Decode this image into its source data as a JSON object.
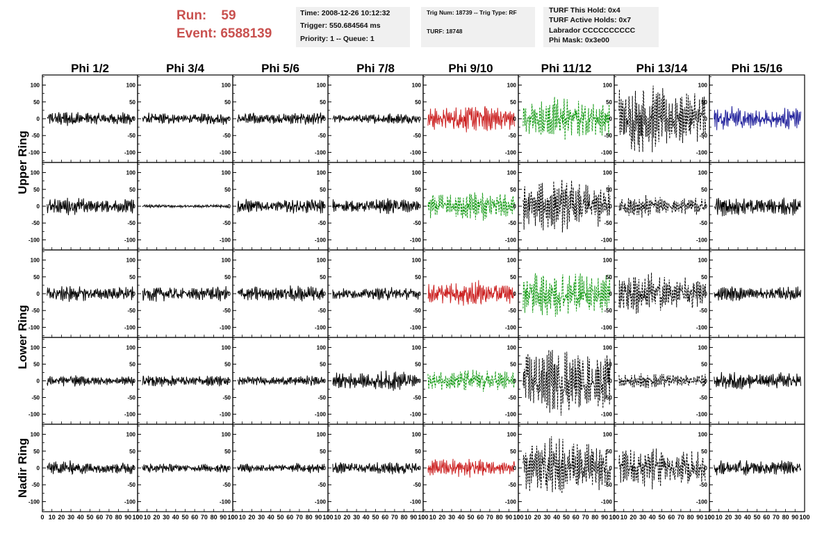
{
  "header": {
    "run_label": "Run:    59",
    "event_label": "Event: 6588139",
    "info_time": {
      "line1": "Time: 2008-12-26 10:12:32",
      "line2": "Trigger: 550.684564 ms",
      "line3": "Priority: 1 -- Queue: 1"
    },
    "info_trig": {
      "line1": "Trig Num: 18739 -- Trig Type: RF",
      "line2": "TURF: 18748"
    },
    "info_turf": {
      "line1": "TURF This Hold: 0x4",
      "line2": "TURF Active Holds: 0x7",
      "line3": "Labrador CCCCCCCCCC",
      "line4": "Phi Mask: 0x3e00"
    }
  },
  "colors": {
    "black": "#000000",
    "red": "#cc2222",
    "green": "#119911",
    "blue": "#22229c",
    "highlight_text": "#c9514f",
    "info_bg": "#f0f0f0"
  },
  "chart_data": {
    "type": "line",
    "columns": [
      "Phi 1/2",
      "Phi 3/4",
      "Phi 5/6",
      "Phi 7/8",
      "Phi 9/10",
      "Phi 11/12",
      "Phi 13/14",
      "Phi 15/16"
    ],
    "row_labels": [
      {
        "label": "Upper Ring",
        "rows": [
          0,
          1
        ]
      },
      {
        "label": "Lower Ring",
        "rows": [
          2,
          3
        ]
      },
      {
        "label": "Nadir Ring",
        "rows": [
          4
        ]
      }
    ],
    "x_tick_labels": [
      "0",
      "10",
      "20",
      "30",
      "40",
      "50",
      "60",
      "70",
      "80",
      "90",
      "100"
    ],
    "y_tick_labels": [
      "100",
      "50",
      "0",
      "-50",
      "-100"
    ],
    "xlim": [
      0,
      100
    ],
    "ylim": [
      -130,
      130
    ],
    "x_ticks": [
      0,
      10,
      20,
      30,
      40,
      50,
      60,
      70,
      80,
      90,
      100
    ],
    "y_ticks": [
      100,
      50,
      0,
      -50,
      -100
    ],
    "panels": [
      [
        {
          "amp": 22,
          "color": "black",
          "dash": false
        },
        {
          "amp": 18,
          "color": "black",
          "dash": false
        },
        {
          "amp": 20,
          "color": "black",
          "dash": false
        },
        {
          "amp": 15,
          "color": "black",
          "dash": false
        },
        {
          "amp": 38,
          "color": "red",
          "dash": false
        },
        {
          "amp": 60,
          "color": "green",
          "dash": true
        },
        {
          "amp": 95,
          "color": "black",
          "dash": true
        },
        {
          "amp": 35,
          "color": "blue",
          "dash": false
        }
      ],
      [
        {
          "amp": 24,
          "color": "black",
          "dash": false
        },
        {
          "amp": 5,
          "color": "black",
          "dash": false
        },
        {
          "amp": 22,
          "color": "black",
          "dash": false
        },
        {
          "amp": 22,
          "color": "black",
          "dash": false
        },
        {
          "amp": 40,
          "color": "green",
          "dash": true
        },
        {
          "amp": 75,
          "color": "black",
          "dash": true
        },
        {
          "amp": 30,
          "color": "black",
          "dash": true
        },
        {
          "amp": 30,
          "color": "black",
          "dash": false
        }
      ],
      [
        {
          "amp": 22,
          "color": "black",
          "dash": false
        },
        {
          "amp": 24,
          "color": "black",
          "dash": false
        },
        {
          "amp": 26,
          "color": "black",
          "dash": false
        },
        {
          "amp": 18,
          "color": "black",
          "dash": false
        },
        {
          "amp": 34,
          "color": "red",
          "dash": false
        },
        {
          "amp": 68,
          "color": "green",
          "dash": true
        },
        {
          "amp": 60,
          "color": "black",
          "dash": true
        },
        {
          "amp": 22,
          "color": "black",
          "dash": false
        }
      ],
      [
        {
          "amp": 16,
          "color": "black",
          "dash": false
        },
        {
          "amp": 17,
          "color": "black",
          "dash": false
        },
        {
          "amp": 15,
          "color": "black",
          "dash": false
        },
        {
          "amp": 28,
          "color": "black",
          "dash": false
        },
        {
          "amp": 32,
          "color": "green",
          "dash": true
        },
        {
          "amp": 90,
          "color": "black",
          "dash": true
        },
        {
          "amp": 22,
          "color": "black",
          "dash": true
        },
        {
          "amp": 28,
          "color": "black",
          "dash": false
        }
      ],
      [
        {
          "amp": 20,
          "color": "black",
          "dash": false
        },
        {
          "amp": 14,
          "color": "black",
          "dash": false
        },
        {
          "amp": 15,
          "color": "black",
          "dash": false
        },
        {
          "amp": 18,
          "color": "black",
          "dash": false
        },
        {
          "amp": 30,
          "color": "red",
          "dash": false
        },
        {
          "amp": 85,
          "color": "black",
          "dash": true
        },
        {
          "amp": 62,
          "color": "black",
          "dash": true
        },
        {
          "amp": 25,
          "color": "black",
          "dash": false
        }
      ]
    ]
  }
}
